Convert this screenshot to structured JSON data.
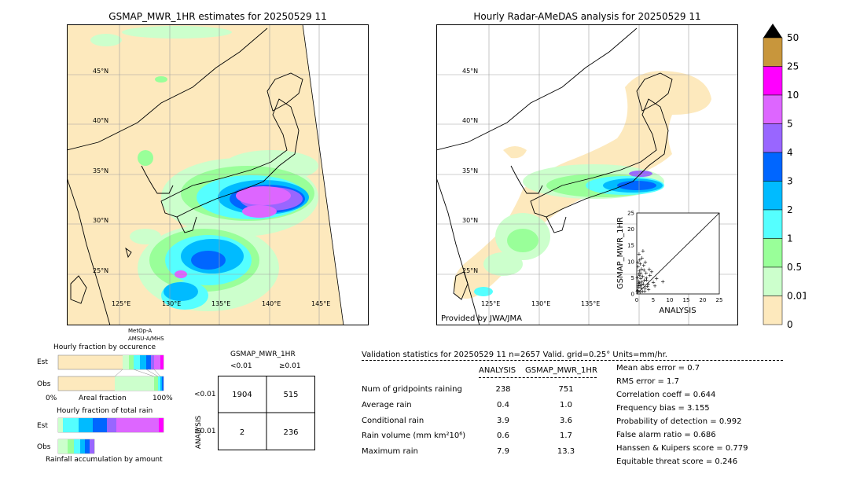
{
  "map_left": {
    "title": "GSMAP_MWR_1HR estimates for 20250529 11",
    "lat_labels": [
      "45°N",
      "40°N",
      "35°N",
      "30°N",
      "25°N"
    ],
    "lon_labels": [
      "125°E",
      "130°E",
      "135°E",
      "140°E",
      "145°E"
    ],
    "satellite_note": [
      "MetOp-A",
      "AMSU-A/MHS"
    ]
  },
  "map_right": {
    "title": "Hourly Radar-AMeDAS analysis for 20250529 11",
    "lat_labels": [
      "45°N",
      "40°N",
      "35°N",
      "30°N",
      "25°N"
    ],
    "lon_labels": [
      "125°E",
      "130°E",
      "135°E"
    ],
    "provider": "Provided by JWA/JMA"
  },
  "colorbar": {
    "labels": [
      "50",
      "25",
      "10",
      "5",
      "4",
      "3",
      "2",
      "1",
      "0.5",
      "0.01",
      "0"
    ],
    "colors": [
      "#c8963c",
      "#ff00ff",
      "#dd66ff",
      "#9966ff",
      "#0066ff",
      "#00bbff",
      "#55ffff",
      "#99ff99",
      "#ccffcc",
      "#fde9bd"
    ]
  },
  "occurrence": {
    "title": "Hourly fraction by occurence",
    "row_est": "Est",
    "row_obs": "Obs",
    "axis_left": "0%",
    "axis_mid": "Areal fraction",
    "axis_right": "100%"
  },
  "total_rain": {
    "title": "Hourly fraction of total rain",
    "row_est": "Est",
    "row_obs": "Obs",
    "footer": "Rainfall accumulation by amount"
  },
  "contingency": {
    "title": "GSMAP_MWR_1HR",
    "col_lt": "<0.01",
    "col_ge": "≥0.01",
    "row_axis": "ANALYSIS",
    "row_lt": "<0.01",
    "row_ge": "≥0.01",
    "cells": [
      "1904",
      "515",
      "2",
      "236"
    ]
  },
  "stats": {
    "header": "Validation statistics for 20250529 11  n=2657 Valid. grid=0.25° Units=mm/hr.",
    "col_analysis": "ANALYSIS",
    "col_gsmap": "GSMAP_MWR_1HR",
    "rows": [
      {
        "label": "Num of gridpoints raining",
        "analysis": "238",
        "gsmap": "751"
      },
      {
        "label": "Average rain",
        "analysis": "0.4",
        "gsmap": "1.0"
      },
      {
        "label": "Conditional rain",
        "analysis": "3.9",
        "gsmap": "3.6"
      },
      {
        "label": "Rain volume (mm km²10⁶)",
        "analysis": "0.6",
        "gsmap": "1.7"
      },
      {
        "label": "Maximum rain",
        "analysis": "7.9",
        "gsmap": "13.3"
      }
    ],
    "scores": [
      "Mean abs error =    0.7",
      "RMS error =    1.7",
      "Correlation coeff =  0.644",
      "Frequency bias =  3.155",
      "Probability of detection =  0.992",
      "False alarm ratio =  0.686",
      "Hanssen & Kuipers score =  0.779",
      "Equitable threat score =  0.246"
    ]
  },
  "chart_data": {
    "type": "scatter",
    "xlabel": "ANALYSIS",
    "ylabel": "GSMAP_MWR_1HR",
    "xlim": [
      0,
      25
    ],
    "ylim": [
      0,
      25
    ],
    "x_ticks": [
      "0",
      "5",
      "10",
      "15",
      "20",
      "25"
    ],
    "y_ticks": [
      "0",
      "5",
      "10",
      "15",
      "20",
      "25"
    ],
    "points": [
      [
        0.3,
        1.2
      ],
      [
        0.5,
        2.1
      ],
      [
        0.8,
        3.5
      ],
      [
        1.0,
        0.6
      ],
      [
        1.2,
        4.8
      ],
      [
        1.5,
        2.9
      ],
      [
        0.6,
        6.2
      ],
      [
        1.8,
        5.5
      ],
      [
        2.0,
        3.1
      ],
      [
        2.2,
        7.4
      ],
      [
        0.4,
        8.5
      ],
      [
        1.1,
        9.3
      ],
      [
        2.5,
        1.8
      ],
      [
        0.9,
        10.6
      ],
      [
        1.4,
        7.8
      ],
      [
        3.0,
        4.4
      ],
      [
        0.2,
        5.1
      ],
      [
        2.8,
        6.6
      ],
      [
        1.6,
        11.2
      ],
      [
        0.7,
        12.4
      ],
      [
        3.5,
        3.2
      ],
      [
        2.1,
        8.9
      ],
      [
        1.9,
        13.3
      ],
      [
        4.0,
        5.8
      ],
      [
        0.5,
        4.0
      ],
      [
        3.2,
        2.4
      ],
      [
        1.3,
        1.9
      ],
      [
        2.6,
        9.8
      ],
      [
        0.8,
        7.1
      ],
      [
        4.5,
        6.9
      ],
      [
        5.0,
        3.7
      ],
      [
        1.7,
        0.9
      ],
      [
        0.3,
        9.8
      ],
      [
        2.3,
        4.2
      ],
      [
        3.8,
        7.6
      ],
      [
        1.0,
        2.7
      ],
      [
        0.6,
        3.3
      ],
      [
        6.0,
        4.8
      ],
      [
        2.9,
        5.0
      ],
      [
        7.9,
        3.9
      ],
      [
        1.2,
        6.4
      ],
      [
        0.9,
        5.7
      ],
      [
        3.6,
        1.5
      ],
      [
        5.5,
        2.6
      ],
      [
        2.4,
        0.8
      ],
      [
        1.5,
        3.8
      ],
      [
        0.4,
        2.5
      ],
      [
        0.2,
        1.0
      ]
    ]
  }
}
